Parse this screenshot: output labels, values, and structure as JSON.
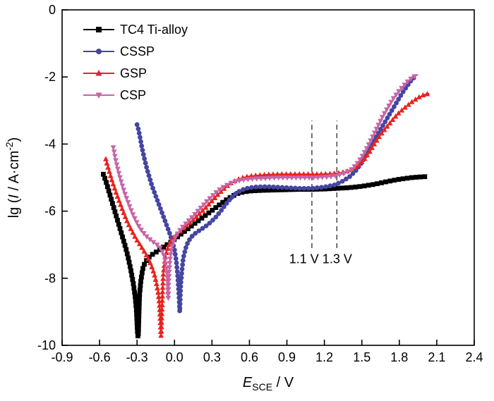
{
  "figure": {
    "background": "#ffffff"
  },
  "chart_data": {
    "type": "line",
    "title": "",
    "xlabel_plain": "E_SCE / V",
    "ylabel_plain": "lg (I / A·cm⁻²)",
    "xlabel_parts": [
      {
        "text": "E",
        "italic": true
      },
      {
        "text": "SCE",
        "sub": true
      },
      {
        "text": " / V"
      }
    ],
    "ylabel_parts": [
      {
        "text": "lg ("
      },
      {
        "text": "I",
        "italic": true
      },
      {
        "text": " / A·cm"
      },
      {
        "text": "-2",
        "sup": true
      },
      {
        "text": ")"
      }
    ],
    "xlim": [
      -0.9,
      2.4
    ],
    "ylim": [
      -10,
      0
    ],
    "x_ticks": {
      "values": [
        -0.9,
        -0.6,
        -0.3,
        0,
        0.3,
        0.6,
        0.9,
        1.2,
        1.5,
        1.8,
        2.1,
        2.4
      ],
      "labels": [
        "-0.9",
        "-0.6",
        "-0.3",
        "0.0",
        "0.3",
        "0.6",
        "0.9",
        "1.2",
        "1.5",
        "1.8",
        "2.1",
        "2.4"
      ]
    },
    "y_ticks": {
      "values": [
        0,
        -2,
        -4,
        -6,
        -8,
        -10
      ],
      "labels": [
        "0",
        "-2",
        "-4",
        "-6",
        "-8",
        "-10"
      ]
    },
    "grid": false,
    "legend_position": "top-left",
    "vlines": [
      {
        "x": 1.1,
        "y_from": -7.1,
        "y_to": -3.3,
        "style": "dashed",
        "color": "#3a3a3a"
      },
      {
        "x": 1.3,
        "y_from": -7.1,
        "y_to": -3.3,
        "style": "dashed",
        "color": "#3a3a3a"
      }
    ],
    "annotations": [
      {
        "text": "1.1 V 1.3 V",
        "x": 1.17,
        "y": -7.55
      }
    ],
    "series": [
      {
        "name": "TC4 Ti-alloy",
        "color": "#000000",
        "marker": "square",
        "points": [
          [
            -0.57,
            -4.9
          ],
          [
            -0.55,
            -5.1
          ],
          [
            -0.53,
            -5.35
          ],
          [
            -0.51,
            -5.6
          ],
          [
            -0.49,
            -5.85
          ],
          [
            -0.47,
            -6.1
          ],
          [
            -0.45,
            -6.35
          ],
          [
            -0.43,
            -6.6
          ],
          [
            -0.41,
            -6.85
          ],
          [
            -0.39,
            -7.1
          ],
          [
            -0.37,
            -7.4
          ],
          [
            -0.35,
            -7.75
          ],
          [
            -0.33,
            -8.15
          ],
          [
            -0.315,
            -8.55
          ],
          [
            -0.305,
            -8.95
          ],
          [
            -0.3,
            -9.35
          ],
          [
            -0.295,
            -9.7
          ],
          [
            -0.29,
            -9.75
          ],
          [
            -0.285,
            -9.1
          ],
          [
            -0.28,
            -8.5
          ],
          [
            -0.27,
            -8.1
          ],
          [
            -0.26,
            -7.85
          ],
          [
            -0.25,
            -7.65
          ],
          [
            -0.23,
            -7.5
          ],
          [
            -0.21,
            -7.4
          ],
          [
            -0.19,
            -7.32
          ],
          [
            -0.16,
            -7.25
          ],
          [
            -0.13,
            -7.18
          ],
          [
            -0.1,
            -7.1
          ],
          [
            -0.06,
            -7.0
          ],
          [
            -0.02,
            -6.9
          ],
          [
            0.02,
            -6.78
          ],
          [
            0.06,
            -6.66
          ],
          [
            0.1,
            -6.55
          ],
          [
            0.15,
            -6.4
          ],
          [
            0.2,
            -6.26
          ],
          [
            0.25,
            -6.12
          ],
          [
            0.3,
            -5.98
          ],
          [
            0.35,
            -5.84
          ],
          [
            0.4,
            -5.7
          ],
          [
            0.45,
            -5.58
          ],
          [
            0.5,
            -5.48
          ],
          [
            0.55,
            -5.43
          ],
          [
            0.6,
            -5.4
          ],
          [
            0.7,
            -5.38
          ],
          [
            0.8,
            -5.37
          ],
          [
            0.9,
            -5.36
          ],
          [
            1.0,
            -5.35
          ],
          [
            1.1,
            -5.35
          ],
          [
            1.2,
            -5.34
          ],
          [
            1.3,
            -5.32
          ],
          [
            1.4,
            -5.3
          ],
          [
            1.5,
            -5.26
          ],
          [
            1.6,
            -5.2
          ],
          [
            1.7,
            -5.12
          ],
          [
            1.8,
            -5.05
          ],
          [
            1.9,
            -5.0
          ],
          [
            1.97,
            -4.98
          ],
          [
            2.02,
            -4.97
          ]
        ]
      },
      {
        "name": "CSSP",
        "color": "#4545a2",
        "marker": "circle",
        "points": [
          [
            -0.3,
            -3.42
          ],
          [
            -0.29,
            -3.55
          ],
          [
            -0.28,
            -3.72
          ],
          [
            -0.27,
            -3.92
          ],
          [
            -0.26,
            -4.12
          ],
          [
            -0.24,
            -4.45
          ],
          [
            -0.22,
            -4.75
          ],
          [
            -0.2,
            -5.0
          ],
          [
            -0.18,
            -5.25
          ],
          [
            -0.16,
            -5.45
          ],
          [
            -0.14,
            -5.65
          ],
          [
            -0.12,
            -5.85
          ],
          [
            -0.1,
            -6.05
          ],
          [
            -0.08,
            -6.25
          ],
          [
            -0.06,
            -6.45
          ],
          [
            -0.04,
            -6.65
          ],
          [
            -0.02,
            -6.88
          ],
          [
            0.0,
            -7.15
          ],
          [
            0.015,
            -7.5
          ],
          [
            0.025,
            -7.9
          ],
          [
            0.032,
            -8.3
          ],
          [
            0.038,
            -8.7
          ],
          [
            0.042,
            -9.0
          ],
          [
            0.046,
            -8.6
          ],
          [
            0.05,
            -8.2
          ],
          [
            0.06,
            -7.75
          ],
          [
            0.07,
            -7.4
          ],
          [
            0.09,
            -7.1
          ],
          [
            0.11,
            -6.9
          ],
          [
            0.14,
            -6.75
          ],
          [
            0.17,
            -6.65
          ],
          [
            0.21,
            -6.55
          ],
          [
            0.25,
            -6.45
          ],
          [
            0.29,
            -6.33
          ],
          [
            0.33,
            -6.18
          ],
          [
            0.37,
            -6.0
          ],
          [
            0.41,
            -5.8
          ],
          [
            0.45,
            -5.62
          ],
          [
            0.49,
            -5.48
          ],
          [
            0.53,
            -5.38
          ],
          [
            0.58,
            -5.32
          ],
          [
            0.64,
            -5.28
          ],
          [
            0.72,
            -5.27
          ],
          [
            0.8,
            -5.28
          ],
          [
            0.9,
            -5.3
          ],
          [
            1.0,
            -5.32
          ],
          [
            1.1,
            -5.32
          ],
          [
            1.2,
            -5.28
          ],
          [
            1.28,
            -5.22
          ],
          [
            1.34,
            -5.12
          ],
          [
            1.4,
            -4.98
          ],
          [
            1.45,
            -4.8
          ],
          [
            1.5,
            -4.55
          ],
          [
            1.54,
            -4.3
          ],
          [
            1.58,
            -4.02
          ],
          [
            1.62,
            -3.75
          ],
          [
            1.66,
            -3.5
          ],
          [
            1.7,
            -3.25
          ],
          [
            1.74,
            -3.0
          ],
          [
            1.78,
            -2.75
          ],
          [
            1.82,
            -2.5
          ],
          [
            1.86,
            -2.28
          ],
          [
            1.9,
            -2.08
          ],
          [
            1.93,
            -1.98
          ]
        ]
      },
      {
        "name": "GSP",
        "color": "#e8231f",
        "marker": "triangle-up",
        "points": [
          [
            -0.55,
            -4.45
          ],
          [
            -0.54,
            -4.6
          ],
          [
            -0.52,
            -4.85
          ],
          [
            -0.5,
            -5.1
          ],
          [
            -0.48,
            -5.32
          ],
          [
            -0.46,
            -5.53
          ],
          [
            -0.44,
            -5.73
          ],
          [
            -0.42,
            -5.93
          ],
          [
            -0.4,
            -6.12
          ],
          [
            -0.38,
            -6.3
          ],
          [
            -0.36,
            -6.46
          ],
          [
            -0.34,
            -6.6
          ],
          [
            -0.32,
            -6.74
          ],
          [
            -0.3,
            -6.87
          ],
          [
            -0.28,
            -6.98
          ],
          [
            -0.26,
            -7.1
          ],
          [
            -0.24,
            -7.22
          ],
          [
            -0.22,
            -7.35
          ],
          [
            -0.2,
            -7.5
          ],
          [
            -0.18,
            -7.68
          ],
          [
            -0.16,
            -7.9
          ],
          [
            -0.145,
            -8.15
          ],
          [
            -0.13,
            -8.45
          ],
          [
            -0.12,
            -8.8
          ],
          [
            -0.115,
            -9.2
          ],
          [
            -0.11,
            -9.6
          ],
          [
            -0.108,
            -9.72
          ],
          [
            -0.1,
            -8.9
          ],
          [
            -0.095,
            -8.3
          ],
          [
            -0.09,
            -7.9
          ],
          [
            -0.08,
            -7.55
          ],
          [
            -0.07,
            -7.3
          ],
          [
            -0.05,
            -7.05
          ],
          [
            -0.03,
            -6.9
          ],
          [
            -0.01,
            -6.8
          ],
          [
            0.02,
            -6.68
          ],
          [
            0.06,
            -6.55
          ],
          [
            0.1,
            -6.42
          ],
          [
            0.15,
            -6.26
          ],
          [
            0.2,
            -6.08
          ],
          [
            0.25,
            -5.9
          ],
          [
            0.3,
            -5.7
          ],
          [
            0.35,
            -5.5
          ],
          [
            0.4,
            -5.32
          ],
          [
            0.45,
            -5.17
          ],
          [
            0.5,
            -5.07
          ],
          [
            0.55,
            -5.0
          ],
          [
            0.6,
            -4.96
          ],
          [
            0.68,
            -4.93
          ],
          [
            0.76,
            -4.91
          ],
          [
            0.85,
            -4.9
          ],
          [
            0.95,
            -4.9
          ],
          [
            1.05,
            -4.9
          ],
          [
            1.15,
            -4.9
          ],
          [
            1.25,
            -4.89
          ],
          [
            1.33,
            -4.86
          ],
          [
            1.4,
            -4.8
          ],
          [
            1.46,
            -4.68
          ],
          [
            1.51,
            -4.5
          ],
          [
            1.56,
            -4.25
          ],
          [
            1.6,
            -4.0
          ],
          [
            1.64,
            -3.78
          ],
          [
            1.68,
            -3.58
          ],
          [
            1.72,
            -3.4
          ],
          [
            1.76,
            -3.22
          ],
          [
            1.8,
            -3.06
          ],
          [
            1.85,
            -2.9
          ],
          [
            1.9,
            -2.75
          ],
          [
            1.95,
            -2.62
          ],
          [
            2.0,
            -2.53
          ],
          [
            2.04,
            -2.5
          ]
        ]
      },
      {
        "name": "CSP",
        "color": "#c764a6",
        "marker": "triangle-down",
        "points": [
          [
            -0.49,
            -4.1
          ],
          [
            -0.48,
            -4.3
          ],
          [
            -0.47,
            -4.5
          ],
          [
            -0.45,
            -4.8
          ],
          [
            -0.43,
            -5.08
          ],
          [
            -0.41,
            -5.33
          ],
          [
            -0.39,
            -5.55
          ],
          [
            -0.37,
            -5.75
          ],
          [
            -0.35,
            -5.95
          ],
          [
            -0.33,
            -6.12
          ],
          [
            -0.31,
            -6.28
          ],
          [
            -0.29,
            -6.42
          ],
          [
            -0.27,
            -6.54
          ],
          [
            -0.25,
            -6.64
          ],
          [
            -0.23,
            -6.73
          ],
          [
            -0.21,
            -6.8
          ],
          [
            -0.19,
            -6.86
          ],
          [
            -0.17,
            -6.92
          ],
          [
            -0.15,
            -6.97
          ],
          [
            -0.13,
            -7.03
          ],
          [
            -0.11,
            -7.12
          ],
          [
            -0.09,
            -7.25
          ],
          [
            -0.075,
            -7.45
          ],
          [
            -0.065,
            -7.7
          ],
          [
            -0.058,
            -8.0
          ],
          [
            -0.053,
            -8.3
          ],
          [
            -0.05,
            -8.6
          ],
          [
            -0.047,
            -8.2
          ],
          [
            -0.043,
            -7.85
          ],
          [
            -0.037,
            -7.5
          ],
          [
            -0.03,
            -7.25
          ],
          [
            -0.02,
            -7.05
          ],
          [
            -0.005,
            -6.88
          ],
          [
            0.015,
            -6.72
          ],
          [
            0.04,
            -6.58
          ],
          [
            0.07,
            -6.45
          ],
          [
            0.1,
            -6.33
          ],
          [
            0.14,
            -6.18
          ],
          [
            0.18,
            -6.02
          ],
          [
            0.22,
            -5.86
          ],
          [
            0.26,
            -5.7
          ],
          [
            0.3,
            -5.55
          ],
          [
            0.34,
            -5.42
          ],
          [
            0.38,
            -5.3
          ],
          [
            0.42,
            -5.22
          ],
          [
            0.46,
            -5.15
          ],
          [
            0.5,
            -5.1
          ],
          [
            0.56,
            -5.06
          ],
          [
            0.64,
            -5.03
          ],
          [
            0.72,
            -5.02
          ],
          [
            0.82,
            -5.0
          ],
          [
            0.92,
            -5.0
          ],
          [
            1.02,
            -5.0
          ],
          [
            1.12,
            -5.0
          ],
          [
            1.22,
            -4.98
          ],
          [
            1.3,
            -4.94
          ],
          [
            1.36,
            -4.87
          ],
          [
            1.42,
            -4.75
          ],
          [
            1.47,
            -4.55
          ],
          [
            1.51,
            -4.32
          ],
          [
            1.55,
            -4.05
          ],
          [
            1.59,
            -3.75
          ],
          [
            1.63,
            -3.45
          ],
          [
            1.67,
            -3.15
          ],
          [
            1.71,
            -2.9
          ],
          [
            1.75,
            -2.65
          ],
          [
            1.79,
            -2.45
          ],
          [
            1.83,
            -2.28
          ],
          [
            1.87,
            -2.12
          ],
          [
            1.91,
            -2.0
          ],
          [
            1.95,
            -1.93
          ]
        ]
      }
    ]
  }
}
